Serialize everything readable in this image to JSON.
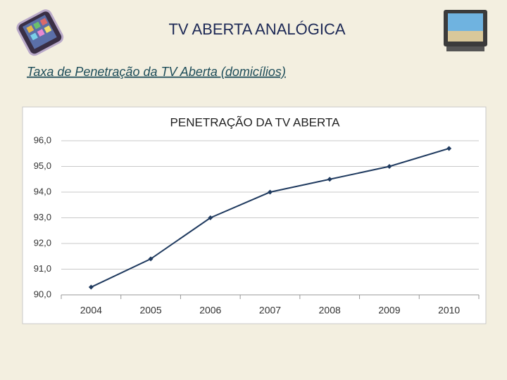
{
  "slide": {
    "title": "TV ABERTA ANALÓGICA",
    "subtitle": "Taxa de Penetração da TV Aberta (domicílios)"
  },
  "chart_data": {
    "type": "line",
    "title": "PENETRAÇÃO DA TV ABERTA",
    "categories": [
      "2004",
      "2005",
      "2006",
      "2007",
      "2008",
      "2009",
      "2010"
    ],
    "values": [
      90.3,
      91.4,
      93.0,
      94.0,
      94.5,
      95.0,
      95.7
    ],
    "color": "#1f3a5f",
    "ylim": [
      90,
      96
    ],
    "yticks": [
      {
        "value": 90,
        "label": "90,0"
      },
      {
        "value": 91,
        "label": "91,0"
      },
      {
        "value": 92,
        "label": "92,0"
      },
      {
        "value": 93,
        "label": "93,0"
      },
      {
        "value": 94,
        "label": "94,0"
      },
      {
        "value": 95,
        "label": "95,0"
      },
      {
        "value": 96,
        "label": "96,0"
      }
    ],
    "grid": true
  }
}
